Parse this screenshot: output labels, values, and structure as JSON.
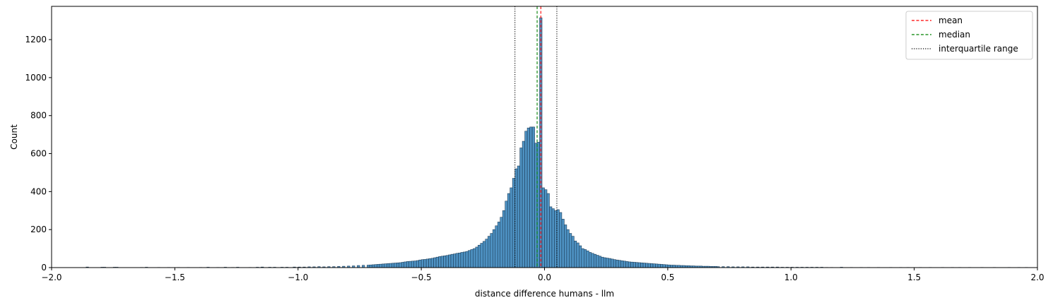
{
  "chart_data": {
    "type": "bar",
    "title": "",
    "xlabel": "distance difference humans - llm",
    "ylabel": "Count",
    "xlim": [
      -2.0,
      2.0
    ],
    "ylim": [
      0,
      1375
    ],
    "xticks": [
      -2.0,
      -1.5,
      -1.0,
      -0.5,
      0.0,
      0.5,
      1.0,
      1.5,
      2.0
    ],
    "xtick_labels": [
      "−2.0",
      "−1.5",
      "−1.0",
      "−0.5",
      "0.0",
      "0.5",
      "1.0",
      "1.5",
      "2.0"
    ],
    "yticks": [
      0,
      200,
      400,
      600,
      800,
      1000,
      1200
    ],
    "ytick_labels": [
      "0",
      "200",
      "400",
      "600",
      "800",
      "1000",
      "1200"
    ],
    "grid": false,
    "legend_position": "top-right",
    "bar_color": "#3b86bd",
    "bin_width": 0.01,
    "bins": [
      [
        -1.86,
        3
      ],
      [
        -1.8,
        2
      ],
      [
        -1.79,
        2
      ],
      [
        -1.75,
        2
      ],
      [
        -1.74,
        2
      ],
      [
        -1.64,
        1
      ],
      [
        -1.62,
        2
      ],
      [
        -1.57,
        1
      ],
      [
        -1.53,
        1
      ],
      [
        -1.49,
        1
      ],
      [
        -1.45,
        1
      ],
      [
        -1.4,
        1
      ],
      [
        -1.37,
        2
      ],
      [
        -1.33,
        1
      ],
      [
        -1.3,
        2
      ],
      [
        -1.27,
        1
      ],
      [
        -1.25,
        2
      ],
      [
        -1.2,
        1
      ],
      [
        -1.17,
        2
      ],
      [
        -1.15,
        3
      ],
      [
        -1.12,
        2
      ],
      [
        -1.1,
        2
      ],
      [
        -1.07,
        2
      ],
      [
        -1.05,
        2
      ],
      [
        -1.02,
        3
      ],
      [
        -1.0,
        3
      ],
      [
        -0.98,
        3
      ],
      [
        -0.96,
        4
      ],
      [
        -0.94,
        4
      ],
      [
        -0.92,
        5
      ],
      [
        -0.9,
        4
      ],
      [
        -0.88,
        5
      ],
      [
        -0.86,
        5
      ],
      [
        -0.84,
        6
      ],
      [
        -0.82,
        7
      ],
      [
        -0.8,
        8
      ],
      [
        -0.78,
        9
      ],
      [
        -0.76,
        11
      ],
      [
        -0.74,
        12
      ],
      [
        -0.72,
        13
      ],
      [
        -0.71,
        14
      ],
      [
        -0.7,
        15
      ],
      [
        -0.69,
        16
      ],
      [
        -0.68,
        17
      ],
      [
        -0.67,
        18
      ],
      [
        -0.66,
        19
      ],
      [
        -0.65,
        20
      ],
      [
        -0.64,
        21
      ],
      [
        -0.63,
        22
      ],
      [
        -0.62,
        23
      ],
      [
        -0.61,
        24
      ],
      [
        -0.6,
        25
      ],
      [
        -0.59,
        26
      ],
      [
        -0.58,
        28
      ],
      [
        -0.57,
        30
      ],
      [
        -0.56,
        32
      ],
      [
        -0.55,
        33
      ],
      [
        -0.54,
        34
      ],
      [
        -0.53,
        35
      ],
      [
        -0.52,
        37
      ],
      [
        -0.51,
        40
      ],
      [
        -0.5,
        42
      ],
      [
        -0.49,
        43
      ],
      [
        -0.48,
        45
      ],
      [
        -0.47,
        47
      ],
      [
        -0.46,
        49
      ],
      [
        -0.45,
        52
      ],
      [
        -0.44,
        55
      ],
      [
        -0.43,
        58
      ],
      [
        -0.42,
        60
      ],
      [
        -0.41,
        62
      ],
      [
        -0.4,
        64
      ],
      [
        -0.39,
        67
      ],
      [
        -0.38,
        70
      ],
      [
        -0.37,
        72
      ],
      [
        -0.36,
        75
      ],
      [
        -0.35,
        77
      ],
      [
        -0.34,
        80
      ],
      [
        -0.33,
        82
      ],
      [
        -0.32,
        85
      ],
      [
        -0.31,
        90
      ],
      [
        -0.3,
        95
      ],
      [
        -0.29,
        100
      ],
      [
        -0.28,
        108
      ],
      [
        -0.27,
        118
      ],
      [
        -0.26,
        128
      ],
      [
        -0.25,
        138
      ],
      [
        -0.24,
        150
      ],
      [
        -0.23,
        165
      ],
      [
        -0.22,
        180
      ],
      [
        -0.21,
        200
      ],
      [
        -0.2,
        220
      ],
      [
        -0.19,
        240
      ],
      [
        -0.18,
        265
      ],
      [
        -0.17,
        300
      ],
      [
        -0.16,
        350
      ],
      [
        -0.15,
        390
      ],
      [
        -0.14,
        420
      ],
      [
        -0.13,
        470
      ],
      [
        -0.12,
        520
      ],
      [
        -0.11,
        535
      ],
      [
        -0.1,
        630
      ],
      [
        -0.09,
        665
      ],
      [
        -0.08,
        718
      ],
      [
        -0.07,
        735
      ],
      [
        -0.06,
        740
      ],
      [
        -0.05,
        740
      ],
      [
        -0.04,
        655
      ],
      [
        -0.03,
        660
      ],
      [
        -0.02,
        1315
      ],
      [
        -0.01,
        420
      ],
      [
        0.0,
        410
      ],
      [
        0.01,
        390
      ],
      [
        0.02,
        320
      ],
      [
        0.03,
        310
      ],
      [
        0.04,
        300
      ],
      [
        0.05,
        305
      ],
      [
        0.06,
        290
      ],
      [
        0.07,
        255
      ],
      [
        0.08,
        225
      ],
      [
        0.09,
        200
      ],
      [
        0.1,
        180
      ],
      [
        0.11,
        165
      ],
      [
        0.12,
        140
      ],
      [
        0.13,
        130
      ],
      [
        0.14,
        115
      ],
      [
        0.15,
        100
      ],
      [
        0.16,
        95
      ],
      [
        0.17,
        88
      ],
      [
        0.18,
        80
      ],
      [
        0.19,
        75
      ],
      [
        0.2,
        70
      ],
      [
        0.21,
        65
      ],
      [
        0.22,
        60
      ],
      [
        0.23,
        55
      ],
      [
        0.24,
        52
      ],
      [
        0.25,
        50
      ],
      [
        0.26,
        48
      ],
      [
        0.27,
        45
      ],
      [
        0.28,
        42
      ],
      [
        0.29,
        40
      ],
      [
        0.3,
        38
      ],
      [
        0.31,
        36
      ],
      [
        0.32,
        34
      ],
      [
        0.33,
        32
      ],
      [
        0.34,
        30
      ],
      [
        0.35,
        29
      ],
      [
        0.36,
        28
      ],
      [
        0.37,
        27
      ],
      [
        0.38,
        26
      ],
      [
        0.39,
        25
      ],
      [
        0.4,
        24
      ],
      [
        0.41,
        23
      ],
      [
        0.42,
        22
      ],
      [
        0.43,
        21
      ],
      [
        0.44,
        20
      ],
      [
        0.45,
        19
      ],
      [
        0.46,
        18
      ],
      [
        0.47,
        17
      ],
      [
        0.48,
        16
      ],
      [
        0.49,
        15
      ],
      [
        0.5,
        14
      ],
      [
        0.51,
        13
      ],
      [
        0.52,
        13
      ],
      [
        0.53,
        12
      ],
      [
        0.54,
        12
      ],
      [
        0.55,
        11
      ],
      [
        0.56,
        11
      ],
      [
        0.57,
        10
      ],
      [
        0.58,
        10
      ],
      [
        0.59,
        9
      ],
      [
        0.6,
        9
      ],
      [
        0.61,
        8
      ],
      [
        0.62,
        8
      ],
      [
        0.63,
        8
      ],
      [
        0.64,
        7
      ],
      [
        0.65,
        7
      ],
      [
        0.66,
        7
      ],
      [
        0.67,
        6
      ],
      [
        0.68,
        6
      ],
      [
        0.69,
        6
      ],
      [
        0.7,
        5
      ],
      [
        0.72,
        5
      ],
      [
        0.74,
        5
      ],
      [
        0.76,
        4
      ],
      [
        0.78,
        4
      ],
      [
        0.8,
        4
      ],
      [
        0.82,
        4
      ],
      [
        0.84,
        3
      ],
      [
        0.86,
        3
      ],
      [
        0.88,
        3
      ],
      [
        0.9,
        3
      ],
      [
        0.92,
        3
      ],
      [
        0.94,
        3
      ],
      [
        0.96,
        2
      ],
      [
        0.98,
        2
      ],
      [
        1.0,
        2
      ],
      [
        1.02,
        2
      ],
      [
        1.04,
        2
      ],
      [
        1.06,
        2
      ],
      [
        1.08,
        2
      ],
      [
        1.1,
        2
      ],
      [
        1.12,
        2
      ],
      [
        1.14,
        1
      ],
      [
        1.16,
        1
      ],
      [
        1.2,
        2
      ],
      [
        1.24,
        1
      ],
      [
        1.28,
        1
      ],
      [
        1.31,
        1
      ],
      [
        1.35,
        1
      ],
      [
        1.4,
        1
      ],
      [
        1.44,
        1
      ],
      [
        1.47,
        1
      ],
      [
        1.52,
        1
      ],
      [
        1.56,
        1
      ],
      [
        1.61,
        1
      ],
      [
        1.65,
        1
      ],
      [
        1.68,
        1
      ],
      [
        1.72,
        1
      ],
      [
        1.77,
        1
      ],
      [
        1.82,
        1
      ],
      [
        1.88,
        1
      ],
      [
        1.92,
        1
      ],
      [
        1.95,
        1
      ]
    ],
    "vlines": [
      {
        "name": "mean",
        "x": -0.015,
        "color": "#ff0000",
        "style": "dashed"
      },
      {
        "name": "median",
        "x": -0.03,
        "color": "#008000",
        "style": "dashed"
      },
      {
        "name": "interquartile range",
        "x": [
          -0.12,
          0.05
        ],
        "color": "#000000",
        "style": "dotted"
      }
    ],
    "legend": [
      "mean",
      "median",
      "interquartile range"
    ]
  }
}
